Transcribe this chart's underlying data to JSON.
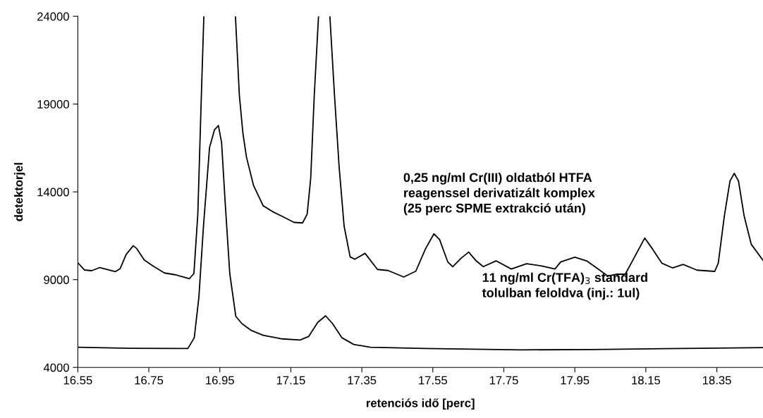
{
  "chart_data": {
    "type": "line",
    "xlabel": "retenciós idő [perc]",
    "ylabel": "detektorjel",
    "xlim": [
      16.55,
      18.48
    ],
    "xticks": [
      16.55,
      16.75,
      16.95,
      17.15,
      17.35,
      17.55,
      17.75,
      17.95,
      18.15,
      18.35
    ],
    "ylim": [
      4000,
      24000
    ],
    "yticks": [
      4000,
      9000,
      14000,
      19000,
      24000
    ],
    "grid": false,
    "legend": false,
    "marker": "none",
    "line_style": "solid",
    "series": [
      {
        "color": "#000000",
        "x": [
          16.55,
          16.569,
          16.589,
          16.612,
          16.633,
          16.656,
          16.669,
          16.686,
          16.706,
          16.716,
          16.737,
          16.763,
          16.794,
          16.824,
          16.847,
          16.864,
          16.877,
          16.888,
          16.898,
          16.905,
          16.95,
          16.994,
          17.005,
          17.015,
          17.025,
          17.045,
          17.072,
          17.099,
          17.126,
          17.159,
          17.183,
          17.196,
          17.206,
          17.216,
          17.228,
          17.245,
          17.26,
          17.273,
          17.286,
          17.3,
          17.317,
          17.33,
          17.359,
          17.394,
          17.424,
          17.468,
          17.502,
          17.529,
          17.553,
          17.569,
          17.592,
          17.606,
          17.629,
          17.651,
          17.672,
          17.692,
          17.728,
          17.771,
          17.814,
          17.857,
          17.894,
          17.91,
          17.95,
          17.983,
          18.016,
          18.043,
          18.069,
          18.092,
          18.116,
          18.147,
          18.169,
          18.195,
          18.225,
          18.255,
          18.294,
          18.344,
          18.354,
          18.371,
          18.387,
          18.399,
          18.411,
          18.427,
          18.447,
          18.48
        ],
        "values": [
          9960,
          9550,
          9510,
          9690,
          9580,
          9460,
          9620,
          10430,
          10930,
          10770,
          10120,
          9760,
          9380,
          9280,
          9150,
          9050,
          9350,
          12730,
          19500,
          24000,
          null,
          24000,
          19500,
          17340,
          15980,
          14360,
          13210,
          12870,
          12600,
          12260,
          12230,
          12730,
          14770,
          19500,
          24000,
          null,
          24000,
          19500,
          15440,
          12060,
          10300,
          10160,
          10500,
          9580,
          9520,
          9150,
          9480,
          10740,
          11610,
          11280,
          10010,
          9740,
          10210,
          10570,
          10070,
          9740,
          10070,
          9605,
          9910,
          9780,
          9605,
          10010,
          10275,
          10070,
          9605,
          9205,
          9310,
          9310,
          10210,
          11370,
          10740,
          9940,
          9670,
          9870,
          9540,
          9470,
          9940,
          12610,
          14620,
          15050,
          14620,
          12610,
          11010,
          10100
        ]
      },
      {
        "color": "#000000",
        "x": [
          16.55,
          16.7,
          16.86,
          16.878,
          16.891,
          16.904,
          16.921,
          16.935,
          16.946,
          16.955,
          16.965,
          16.978,
          16.995,
          17.012,
          17.039,
          17.072,
          17.126,
          17.176,
          17.2,
          17.226,
          17.248,
          17.267,
          17.294,
          17.327,
          17.374,
          17.528,
          17.8,
          18.0,
          18.2,
          18.48
        ],
        "values": [
          5150,
          5090,
          5080,
          5690,
          8000,
          12060,
          16530,
          17540,
          17780,
          16800,
          13410,
          9350,
          6910,
          6500,
          6100,
          5830,
          5625,
          5560,
          5760,
          6570,
          6940,
          6510,
          5690,
          5310,
          5150,
          5080,
          5000,
          5020,
          5070,
          5130
        ]
      }
    ],
    "annotations": [
      "0,25 ng/ml Cr(III) oldatból HTFA\nreagenssel derivatizált komplex\n(25 perc SPME extrakció után)",
      "11 ng/ml Cr(TFA)$_{3}$ standard\ntolulban feloldva (inj.: 1ul)"
    ]
  }
}
